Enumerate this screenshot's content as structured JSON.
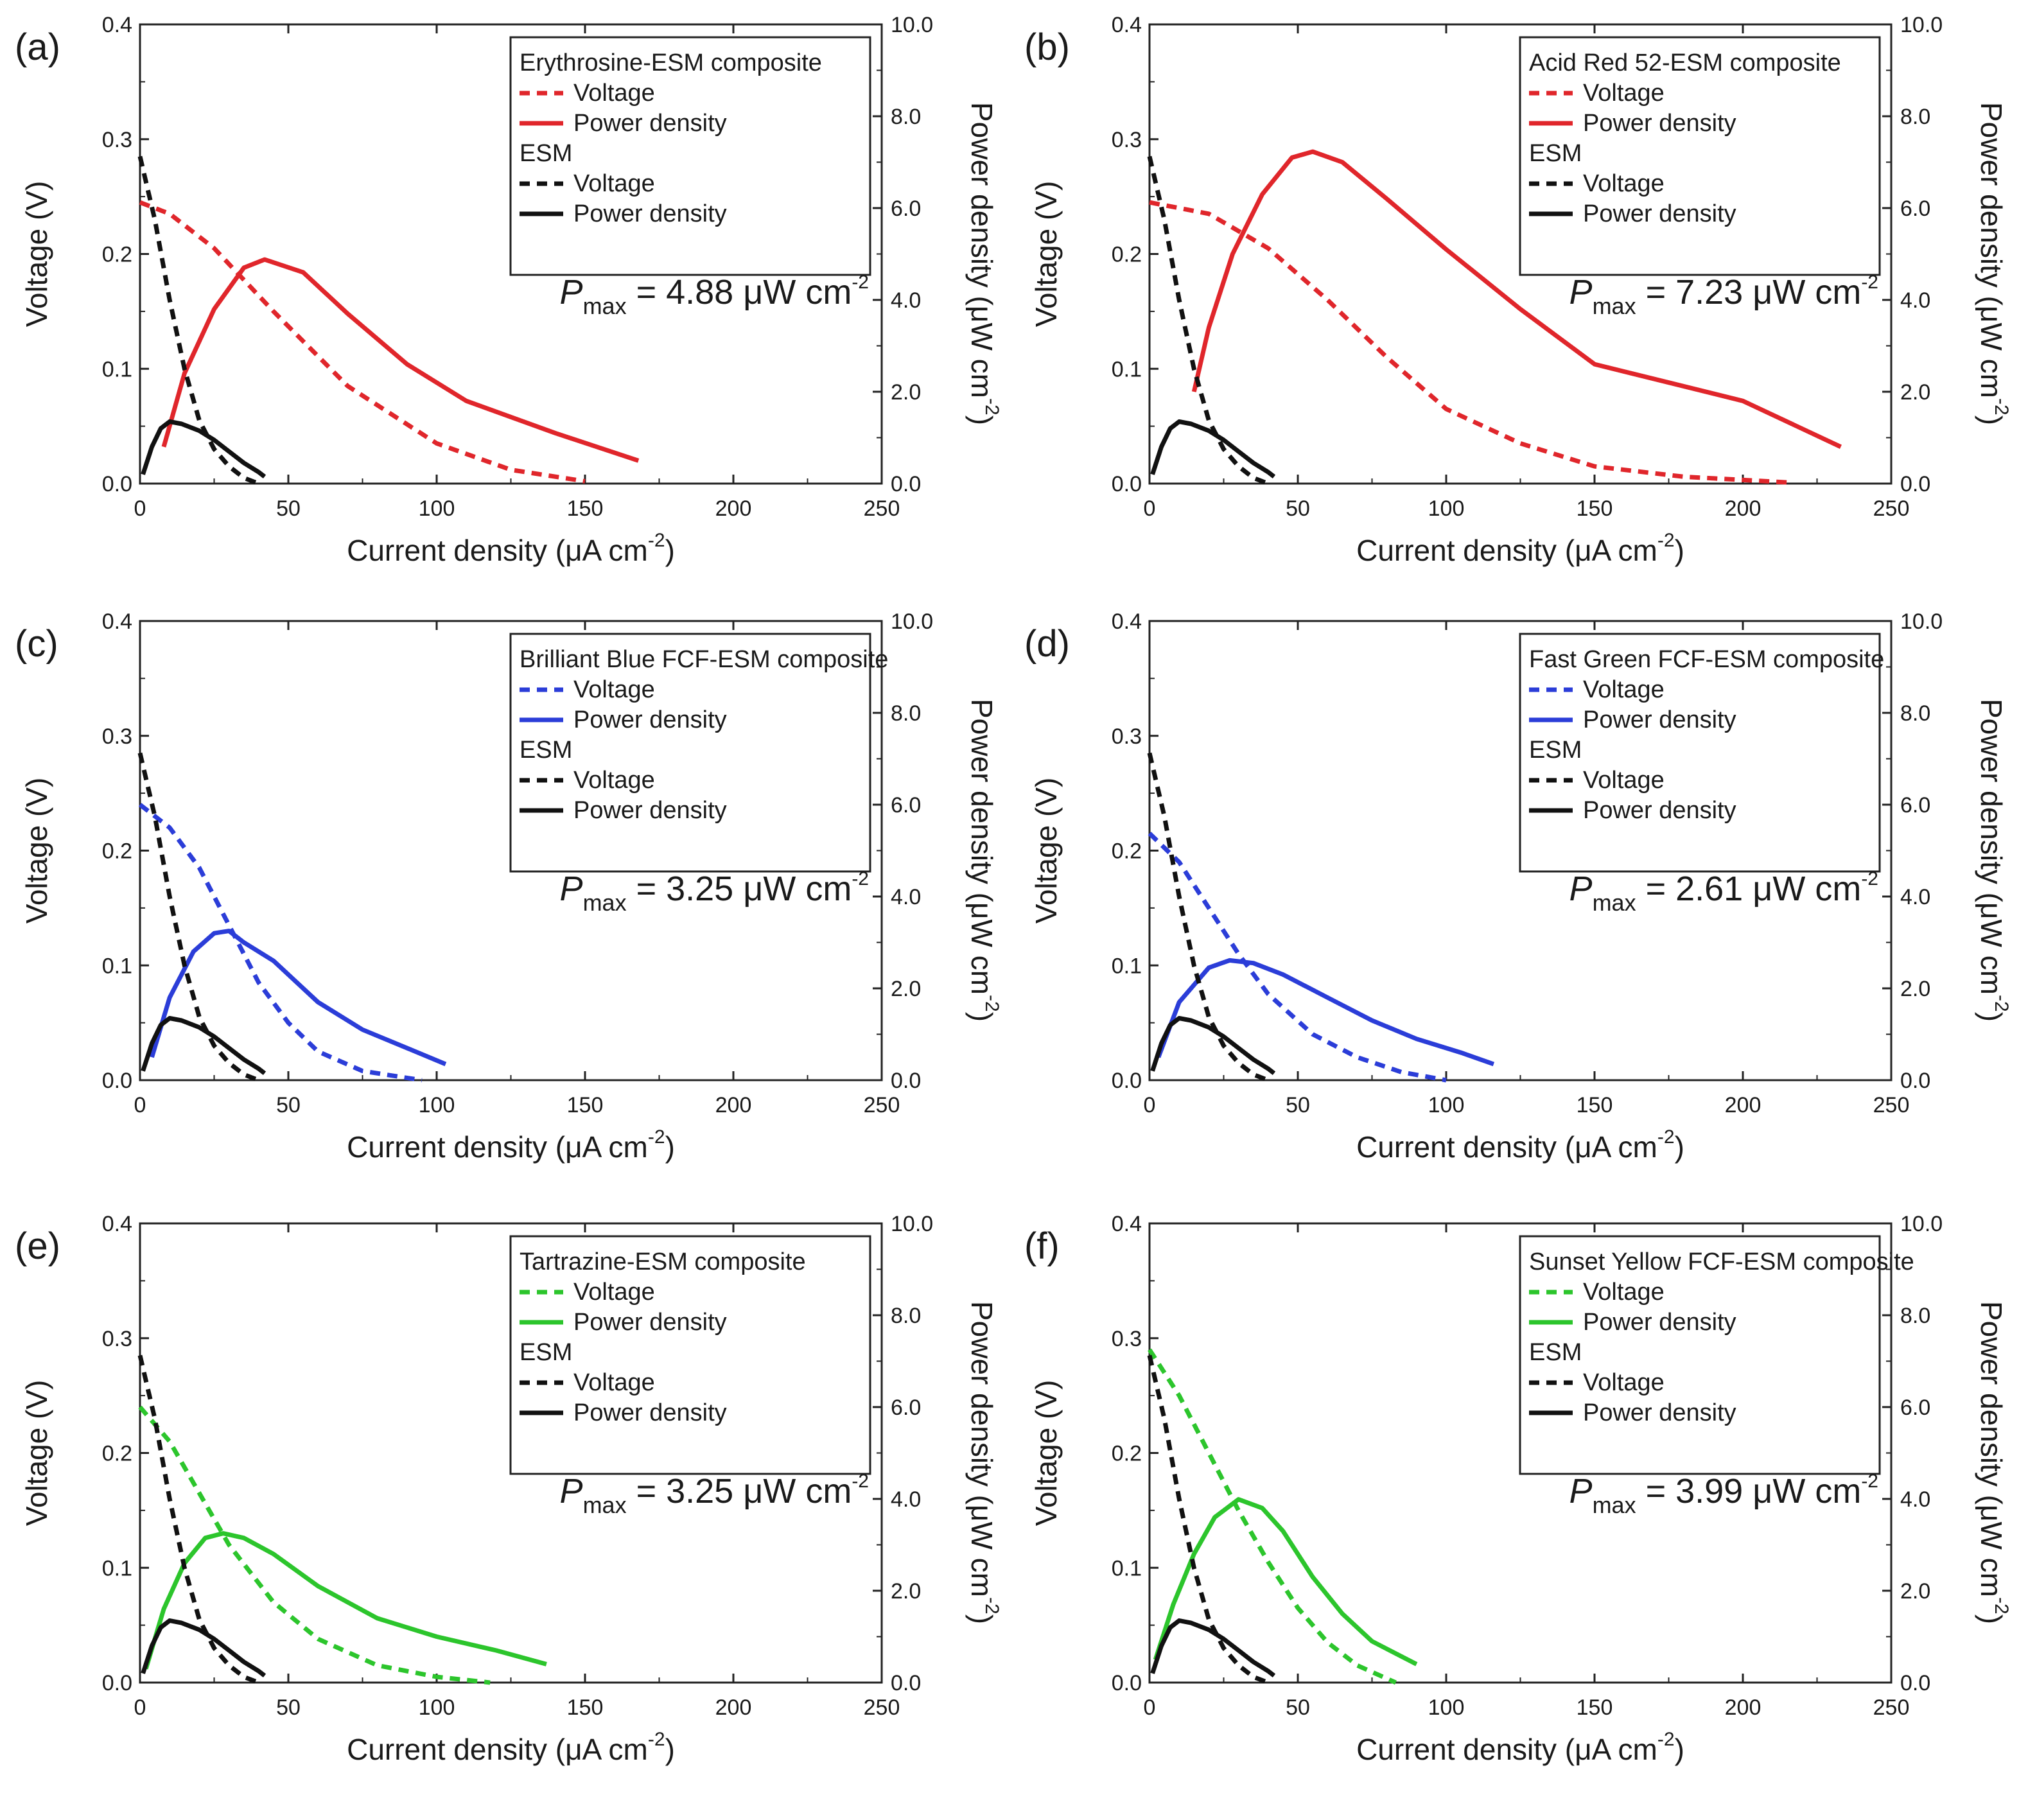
{
  "figure": {
    "xlabel": "Current density (μA cm",
    "xlabel_sup": "-2",
    "xlabel_end": ")",
    "ylabel_left": "Voltage (V)",
    "ylabel_right": "Power density (μW cm",
    "ylabel_right_sup": "-2",
    "ylabel_right_end": ")",
    "legend_voltage": "Voltage",
    "legend_power": "Power density",
    "legend_esm": "ESM",
    "pmax_symbol": "P",
    "pmax_sub": "max",
    "pmax_unit": "μW cm",
    "pmax_unit_sup": "-2",
    "esm_color": "#111111"
  },
  "chart_data": [
    {
      "panel": "(a)",
      "type": "line",
      "composite": "Erythrosine-ESM composite",
      "color": "#e0262b",
      "pmax_value": "4.88",
      "xlim": [
        0,
        250
      ],
      "ylim_left": [
        0,
        0.4
      ],
      "ylim_right": [
        0,
        10
      ],
      "x_ticks": [
        "0",
        "50",
        "100",
        "150",
        "200",
        "250"
      ],
      "y_left_ticks": [
        "0.0",
        "0.1",
        "0.2",
        "0.3",
        "0.4"
      ],
      "y_right_ticks": [
        "0.0",
        "2.0",
        "4.0",
        "6.0",
        "8.0",
        "10.0"
      ],
      "series": [
        {
          "name": "Composite Voltage",
          "axis": "left",
          "style": "dashed",
          "x": [
            0,
            10,
            25,
            45,
            70,
            100,
            125,
            150
          ],
          "y": [
            0.245,
            0.235,
            0.205,
            0.15,
            0.085,
            0.035,
            0.012,
            0.002
          ]
        },
        {
          "name": "Composite Power density",
          "axis": "right",
          "style": "solid",
          "x": [
            8,
            15,
            25,
            35,
            42,
            55,
            70,
            90,
            110,
            140,
            168
          ],
          "y": [
            0.8,
            2.4,
            3.8,
            4.7,
            4.88,
            4.6,
            3.7,
            2.6,
            1.8,
            1.1,
            0.5
          ]
        },
        {
          "name": "ESM Voltage",
          "axis": "left",
          "style": "dashed",
          "x": [
            0,
            5,
            10,
            15,
            20,
            25,
            30,
            35,
            40
          ],
          "y": [
            0.285,
            0.23,
            0.16,
            0.1,
            0.055,
            0.03,
            0.015,
            0.005,
            0.0
          ]
        },
        {
          "name": "ESM Power density",
          "axis": "right",
          "style": "solid",
          "x": [
            1,
            4,
            7,
            10,
            14,
            20,
            25,
            30,
            35,
            40,
            42
          ],
          "y": [
            0.2,
            0.8,
            1.2,
            1.35,
            1.3,
            1.15,
            0.95,
            0.7,
            0.45,
            0.25,
            0.15
          ]
        }
      ]
    },
    {
      "panel": "(b)",
      "type": "line",
      "composite": "Acid Red 52-ESM composite",
      "color": "#e0262b",
      "pmax_value": "7.23",
      "xlim": [
        0,
        250
      ],
      "ylim_left": [
        0,
        0.4
      ],
      "ylim_right": [
        0,
        10
      ],
      "x_ticks": [
        "0",
        "50",
        "100",
        "150",
        "200",
        "250"
      ],
      "y_left_ticks": [
        "0.0",
        "0.1",
        "0.2",
        "0.3",
        "0.4"
      ],
      "y_right_ticks": [
        "0.0",
        "2.0",
        "4.0",
        "6.0",
        "8.0",
        "10.0"
      ],
      "series": [
        {
          "name": "Composite Voltage",
          "axis": "left",
          "style": "dashed",
          "x": [
            0,
            20,
            40,
            60,
            80,
            100,
            125,
            150,
            180,
            215
          ],
          "y": [
            0.245,
            0.235,
            0.205,
            0.16,
            0.11,
            0.065,
            0.035,
            0.015,
            0.006,
            0.001
          ]
        },
        {
          "name": "Composite Power density",
          "axis": "right",
          "style": "solid",
          "x": [
            15,
            20,
            28,
            38,
            48,
            55,
            65,
            80,
            100,
            125,
            150,
            175,
            200,
            233
          ],
          "y": [
            2.0,
            3.4,
            5.0,
            6.3,
            7.1,
            7.23,
            7.0,
            6.2,
            5.1,
            3.8,
            2.6,
            2.2,
            1.8,
            0.8
          ]
        },
        {
          "name": "ESM Voltage",
          "axis": "left",
          "style": "dashed",
          "x": [
            0,
            5,
            10,
            15,
            20,
            25,
            30,
            35,
            40
          ],
          "y": [
            0.285,
            0.23,
            0.16,
            0.1,
            0.055,
            0.03,
            0.015,
            0.005,
            0.0
          ]
        },
        {
          "name": "ESM Power density",
          "axis": "right",
          "style": "solid",
          "x": [
            1,
            4,
            7,
            10,
            14,
            20,
            25,
            30,
            35,
            40,
            42
          ],
          "y": [
            0.2,
            0.8,
            1.2,
            1.35,
            1.3,
            1.15,
            0.95,
            0.7,
            0.45,
            0.25,
            0.15
          ]
        }
      ]
    },
    {
      "panel": "(c)",
      "type": "line",
      "composite": "Brilliant Blue FCF-ESM composite",
      "color": "#2b3dd8",
      "pmax_value": "3.25",
      "xlim": [
        0,
        250
      ],
      "ylim_left": [
        0,
        0.4
      ],
      "ylim_right": [
        0,
        10
      ],
      "x_ticks": [
        "0",
        "50",
        "100",
        "150",
        "200",
        "250"
      ],
      "y_left_ticks": [
        "0.0",
        "0.1",
        "0.2",
        "0.3",
        "0.4"
      ],
      "y_right_ticks": [
        "0.0",
        "2.0",
        "4.0",
        "6.0",
        "8.0",
        "10.0"
      ],
      "series": [
        {
          "name": "Composite Voltage",
          "axis": "left",
          "style": "dashed",
          "x": [
            0,
            10,
            20,
            30,
            40,
            50,
            60,
            75,
            95
          ],
          "y": [
            0.24,
            0.22,
            0.185,
            0.135,
            0.085,
            0.05,
            0.025,
            0.008,
            0.0
          ]
        },
        {
          "name": "Composite Power density",
          "axis": "right",
          "style": "solid",
          "x": [
            4,
            10,
            18,
            25,
            30,
            35,
            45,
            60,
            75,
            90,
            103
          ],
          "y": [
            0.5,
            1.8,
            2.8,
            3.2,
            3.25,
            3.0,
            2.6,
            1.7,
            1.1,
            0.7,
            0.35
          ]
        },
        {
          "name": "ESM Voltage",
          "axis": "left",
          "style": "dashed",
          "x": [
            0,
            5,
            10,
            15,
            20,
            25,
            30,
            35,
            40
          ],
          "y": [
            0.285,
            0.23,
            0.16,
            0.1,
            0.055,
            0.03,
            0.015,
            0.005,
            0.0
          ]
        },
        {
          "name": "ESM Power density",
          "axis": "right",
          "style": "solid",
          "x": [
            1,
            4,
            7,
            10,
            14,
            20,
            25,
            30,
            35,
            40,
            42
          ],
          "y": [
            0.2,
            0.8,
            1.2,
            1.35,
            1.3,
            1.15,
            0.95,
            0.7,
            0.45,
            0.25,
            0.15
          ]
        }
      ]
    },
    {
      "panel": "(d)",
      "type": "line",
      "composite": "Fast Green FCF-ESM composite",
      "color": "#2b3dd8",
      "pmax_value": "2.61",
      "xlim": [
        0,
        250
      ],
      "ylim_left": [
        0,
        0.4
      ],
      "ylim_right": [
        0,
        10
      ],
      "x_ticks": [
        "0",
        "50",
        "100",
        "150",
        "200",
        "250"
      ],
      "y_left_ticks": [
        "0.0",
        "0.1",
        "0.2",
        "0.3",
        "0.4"
      ],
      "y_right_ticks": [
        "0.0",
        "2.0",
        "4.0",
        "6.0",
        "8.0",
        "10.0"
      ],
      "series": [
        {
          "name": "Composite Voltage",
          "axis": "left",
          "style": "dashed",
          "x": [
            0,
            10,
            20,
            30,
            40,
            55,
            70,
            85,
            100
          ],
          "y": [
            0.215,
            0.19,
            0.15,
            0.11,
            0.075,
            0.04,
            0.02,
            0.007,
            0.0
          ]
        },
        {
          "name": "Composite Power density",
          "axis": "right",
          "style": "solid",
          "x": [
            3,
            10,
            20,
            27,
            35,
            45,
            60,
            75,
            90,
            105,
            116
          ],
          "y": [
            0.5,
            1.7,
            2.45,
            2.61,
            2.55,
            2.3,
            1.8,
            1.3,
            0.9,
            0.6,
            0.35
          ]
        },
        {
          "name": "ESM Voltage",
          "axis": "left",
          "style": "dashed",
          "x": [
            0,
            5,
            10,
            15,
            20,
            25,
            30,
            35,
            40
          ],
          "y": [
            0.285,
            0.23,
            0.16,
            0.1,
            0.055,
            0.03,
            0.015,
            0.005,
            0.0
          ]
        },
        {
          "name": "ESM Power density",
          "axis": "right",
          "style": "solid",
          "x": [
            1,
            4,
            7,
            10,
            14,
            20,
            25,
            30,
            35,
            40,
            42
          ],
          "y": [
            0.2,
            0.8,
            1.2,
            1.35,
            1.3,
            1.15,
            0.95,
            0.7,
            0.45,
            0.25,
            0.15
          ]
        }
      ]
    },
    {
      "panel": "(e)",
      "type": "line",
      "composite": "Tartrazine-ESM composite",
      "color": "#2cc52c",
      "pmax_value": "3.25",
      "xlim": [
        0,
        250
      ],
      "ylim_left": [
        0,
        0.4
      ],
      "ylim_right": [
        0,
        10
      ],
      "x_ticks": [
        "0",
        "50",
        "100",
        "150",
        "200",
        "250"
      ],
      "y_left_ticks": [
        "0.0",
        "0.1",
        "0.2",
        "0.3",
        "0.4"
      ],
      "y_right_ticks": [
        "0.0",
        "2.0",
        "4.0",
        "6.0",
        "8.0",
        "10.0"
      ],
      "series": [
        {
          "name": "Composite Voltage",
          "axis": "left",
          "style": "dashed",
          "x": [
            0,
            10,
            20,
            30,
            45,
            60,
            80,
            100,
            118
          ],
          "y": [
            0.24,
            0.21,
            0.165,
            0.12,
            0.07,
            0.038,
            0.015,
            0.005,
            0.0
          ]
        },
        {
          "name": "Composite Power density",
          "axis": "right",
          "style": "solid",
          "x": [
            2,
            8,
            15,
            22,
            28,
            35,
            45,
            60,
            80,
            100,
            120,
            137
          ],
          "y": [
            0.3,
            1.6,
            2.6,
            3.15,
            3.25,
            3.15,
            2.8,
            2.1,
            1.4,
            1.0,
            0.7,
            0.4
          ]
        },
        {
          "name": "ESM Voltage",
          "axis": "left",
          "style": "dashed",
          "x": [
            0,
            5,
            10,
            15,
            20,
            25,
            30,
            35,
            40
          ],
          "y": [
            0.285,
            0.23,
            0.16,
            0.1,
            0.055,
            0.03,
            0.015,
            0.005,
            0.0
          ]
        },
        {
          "name": "ESM Power density",
          "axis": "right",
          "style": "solid",
          "x": [
            1,
            4,
            7,
            10,
            14,
            20,
            25,
            30,
            35,
            40,
            42
          ],
          "y": [
            0.2,
            0.8,
            1.2,
            1.35,
            1.3,
            1.15,
            0.95,
            0.7,
            0.45,
            0.25,
            0.15
          ]
        }
      ]
    },
    {
      "panel": "(f)",
      "type": "line",
      "composite": "Sunset Yellow FCF-ESM composite",
      "color": "#2cc52c",
      "pmax_value": "3.99",
      "xlim": [
        0,
        250
      ],
      "ylim_left": [
        0,
        0.4
      ],
      "ylim_right": [
        0,
        10
      ],
      "x_ticks": [
        "0",
        "50",
        "100",
        "150",
        "200",
        "250"
      ],
      "y_left_ticks": [
        "0.0",
        "0.1",
        "0.2",
        "0.3",
        "0.4"
      ],
      "y_right_ticks": [
        "0.0",
        "2.0",
        "4.0",
        "6.0",
        "8.0",
        "10.0"
      ],
      "series": [
        {
          "name": "Composite Voltage",
          "axis": "left",
          "style": "dashed",
          "x": [
            0,
            10,
            20,
            30,
            40,
            50,
            60,
            70,
            83
          ],
          "y": [
            0.29,
            0.25,
            0.2,
            0.15,
            0.105,
            0.065,
            0.035,
            0.015,
            0.0
          ]
        },
        {
          "name": "Composite Power density",
          "axis": "right",
          "style": "solid",
          "x": [
            2,
            8,
            15,
            22,
            30,
            38,
            45,
            55,
            65,
            75,
            90
          ],
          "y": [
            0.5,
            1.7,
            2.8,
            3.6,
            3.99,
            3.8,
            3.3,
            2.3,
            1.5,
            0.9,
            0.4
          ]
        },
        {
          "name": "ESM Voltage",
          "axis": "left",
          "style": "dashed",
          "x": [
            0,
            5,
            10,
            15,
            20,
            25,
            30,
            35,
            40
          ],
          "y": [
            0.285,
            0.23,
            0.16,
            0.1,
            0.055,
            0.03,
            0.015,
            0.005,
            0.0
          ]
        },
        {
          "name": "ESM Power density",
          "axis": "right",
          "style": "solid",
          "x": [
            1,
            4,
            7,
            10,
            14,
            20,
            25,
            30,
            35,
            40,
            42
          ],
          "y": [
            0.2,
            0.8,
            1.2,
            1.35,
            1.3,
            1.15,
            0.95,
            0.7,
            0.45,
            0.25,
            0.15
          ]
        }
      ]
    }
  ]
}
